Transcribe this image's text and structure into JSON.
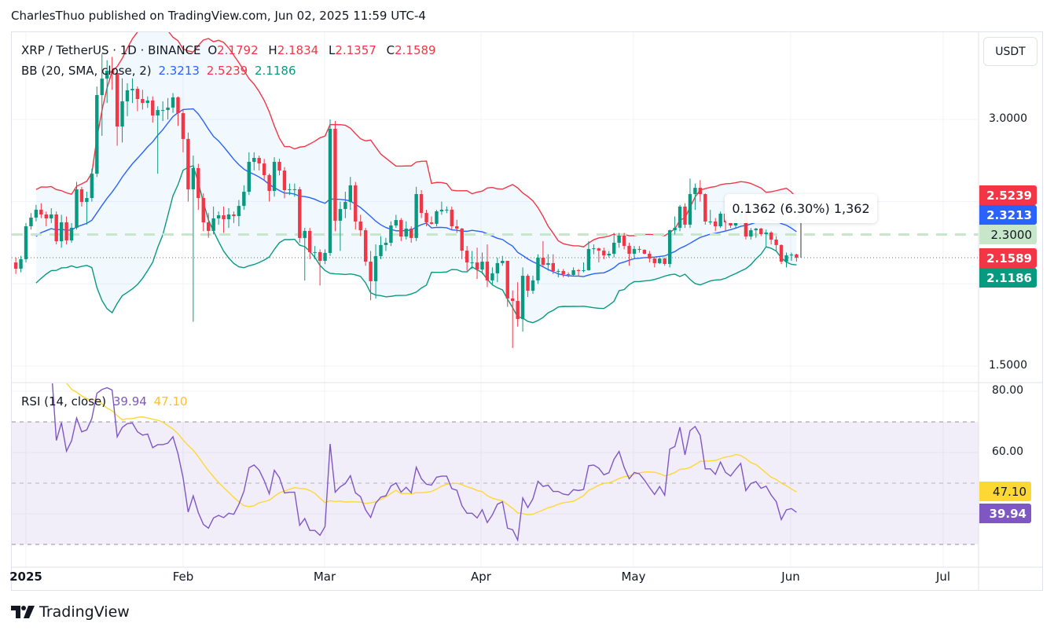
{
  "header": {
    "published": "CharlesThuo published on TradingView.com, Jun 02, 2025 11:59 UTC-4"
  },
  "legend": {
    "symbol": "XRP / TetherUS · 1D · BINANCE",
    "o_label": "O",
    "o": "2.1792",
    "h_label": "H",
    "h": "2.1834",
    "l_label": "L",
    "l": "2.1357",
    "c_label": "C",
    "c": "2.1589",
    "bb_label": "BB (20, SMA, close, 2)",
    "bb_basis": "2.3213",
    "bb_upper": "2.5239",
    "bb_lower": "2.1186",
    "rsi_label": "RSI (14, close)",
    "rsi": "39.94",
    "rsi_ma": "47.10"
  },
  "currency_button": "USDT",
  "price_axis": [
    "3.0000",
    "1.5000"
  ],
  "rsi_axis": [
    "80.00",
    "60.00"
  ],
  "price_labels": {
    "upper": "2.5239",
    "basis": "2.3213",
    "level": "2.3000",
    "close": "2.1589",
    "lower": "2.1186"
  },
  "rsi_labels": {
    "ma": "47.10",
    "rsi": "39.94"
  },
  "measure_tooltip": "0.1362 (6.30%) 1,362",
  "time_axis": [
    "2025",
    "Feb",
    "Mar",
    "Apr",
    "May",
    "Jun",
    "Jul"
  ],
  "footer": {
    "brand": "TradingView"
  },
  "colors": {
    "up": "#089981",
    "down": "#f23645",
    "bb_basis": "#2962ff",
    "bb_upper": "#f23645",
    "bb_lower": "#089981",
    "rsi": "#7e57c2",
    "rsi_ma": "#fdd835",
    "level_line": "#c8e6c9"
  },
  "chart_data": {
    "type": "candlestick",
    "symbol": "XRP / TetherUS",
    "interval": "1D",
    "exchange": "BINANCE",
    "ylim": [
      1.45,
      3.45
    ],
    "rsi_ylim": [
      26,
      82
    ],
    "horizontal_level": 2.3,
    "rsi_bands": [
      30,
      50,
      70
    ],
    "indicators": {
      "bb": {
        "length": 20,
        "type": "SMA",
        "source": "close",
        "mult": 2
      },
      "rsi": {
        "length": 14,
        "source": "close",
        "ma_length": 14
      }
    },
    "columns": [
      "date",
      "open",
      "high",
      "low",
      "close"
    ],
    "candles": [
      [
        "2024-12-30",
        2.13,
        2.16,
        2.06,
        2.092
      ],
      [
        "2024-12-31",
        2.092,
        2.17,
        2.07,
        2.15
      ],
      [
        "2025-01-01",
        2.15,
        2.37,
        2.13,
        2.35
      ],
      [
        "2025-01-02",
        2.35,
        2.43,
        2.33,
        2.403
      ],
      [
        "2025-01-03",
        2.403,
        2.48,
        2.38,
        2.451
      ],
      [
        "2025-01-04",
        2.451,
        2.49,
        2.4,
        2.422
      ],
      [
        "2025-01-05",
        2.422,
        2.44,
        2.35,
        2.398
      ],
      [
        "2025-01-06",
        2.398,
        2.46,
        2.37,
        2.422
      ],
      [
        "2025-01-07",
        2.422,
        2.44,
        2.24,
        2.259
      ],
      [
        "2025-01-08",
        2.259,
        2.42,
        2.22,
        2.374
      ],
      [
        "2025-01-09",
        2.374,
        2.41,
        2.24,
        2.264
      ],
      [
        "2025-01-10",
        2.264,
        2.37,
        2.25,
        2.341
      ],
      [
        "2025-01-11",
        2.341,
        2.62,
        2.33,
        2.575
      ],
      [
        "2025-01-12",
        2.575,
        2.59,
        2.47,
        2.498
      ],
      [
        "2025-01-13",
        2.498,
        2.56,
        2.36,
        2.522
      ],
      [
        "2025-01-14",
        2.522,
        2.7,
        2.5,
        2.67
      ],
      [
        "2025-01-15",
        2.67,
        3.2,
        2.65,
        3.148
      ],
      [
        "2025-01-16",
        3.148,
        3.4,
        2.9,
        3.248
      ],
      [
        "2025-01-17",
        3.248,
        3.36,
        3.1,
        3.296
      ],
      [
        "2025-01-18",
        3.296,
        3.38,
        3.18,
        3.282
      ],
      [
        "2025-01-19",
        3.282,
        3.3,
        2.84,
        2.957
      ],
      [
        "2025-01-20",
        2.957,
        3.25,
        2.86,
        3.11
      ],
      [
        "2025-01-21",
        3.11,
        3.22,
        3.02,
        3.177
      ],
      [
        "2025-01-22",
        3.177,
        3.25,
        3.1,
        3.186
      ],
      [
        "2025-01-23",
        3.186,
        3.2,
        3.05,
        3.124
      ],
      [
        "2025-01-24",
        3.124,
        3.18,
        3.06,
        3.1
      ],
      [
        "2025-01-25",
        3.1,
        3.14,
        3.07,
        3.115
      ],
      [
        "2025-01-26",
        3.115,
        3.14,
        2.98,
        3.024
      ],
      [
        "2025-01-27",
        3.024,
        3.08,
        2.67,
        3.057
      ],
      [
        "2025-01-28",
        3.057,
        3.11,
        2.99,
        3.057
      ],
      [
        "2025-01-29",
        3.057,
        3.13,
        3.0,
        3.072
      ],
      [
        "2025-01-30",
        3.072,
        3.16,
        3.04,
        3.134
      ],
      [
        "2025-01-31",
        3.134,
        3.14,
        2.96,
        3.038
      ],
      [
        "2025-02-01",
        3.038,
        3.06,
        2.8,
        2.881
      ],
      [
        "2025-02-02",
        2.881,
        2.92,
        2.5,
        2.575
      ],
      [
        "2025-02-03",
        2.575,
        2.78,
        1.77,
        2.704
      ],
      [
        "2025-02-04",
        2.704,
        2.73,
        2.45,
        2.522
      ],
      [
        "2025-02-05",
        2.522,
        2.55,
        2.32,
        2.374
      ],
      [
        "2025-02-06",
        2.374,
        2.43,
        2.28,
        2.322
      ],
      [
        "2025-02-07",
        2.322,
        2.47,
        2.3,
        2.398
      ],
      [
        "2025-02-08",
        2.398,
        2.44,
        2.36,
        2.417
      ],
      [
        "2025-02-09",
        2.417,
        2.47,
        2.31,
        2.393
      ],
      [
        "2025-02-10",
        2.393,
        2.46,
        2.34,
        2.422
      ],
      [
        "2025-02-11",
        2.422,
        2.44,
        2.37,
        2.412
      ],
      [
        "2025-02-12",
        2.412,
        2.51,
        2.35,
        2.474
      ],
      [
        "2025-02-13",
        2.474,
        2.6,
        2.45,
        2.56
      ],
      [
        "2025-02-14",
        2.56,
        2.8,
        2.54,
        2.742
      ],
      [
        "2025-02-15",
        2.742,
        2.8,
        2.69,
        2.766
      ],
      [
        "2025-02-16",
        2.766,
        2.78,
        2.69,
        2.732
      ],
      [
        "2025-02-17",
        2.732,
        2.76,
        2.63,
        2.661
      ],
      [
        "2025-02-18",
        2.661,
        2.67,
        2.5,
        2.565
      ],
      [
        "2025-02-19",
        2.565,
        2.77,
        2.53,
        2.742
      ],
      [
        "2025-02-20",
        2.742,
        2.76,
        2.66,
        2.689
      ],
      [
        "2025-02-21",
        2.689,
        2.71,
        2.52,
        2.57
      ],
      [
        "2025-02-22",
        2.57,
        2.61,
        2.54,
        2.575
      ],
      [
        "2025-02-23",
        2.575,
        2.61,
        2.53,
        2.575
      ],
      [
        "2025-02-24",
        2.575,
        2.59,
        2.25,
        2.279
      ],
      [
        "2025-02-25",
        2.279,
        2.34,
        2.02,
        2.322
      ],
      [
        "2025-02-26",
        2.322,
        2.34,
        2.15,
        2.193
      ],
      [
        "2025-02-27",
        2.193,
        2.23,
        2.15,
        2.193
      ],
      [
        "2025-02-28",
        2.193,
        2.21,
        1.99,
        2.14
      ],
      [
        "2025-03-01",
        2.14,
        2.21,
        2.12,
        2.188
      ],
      [
        "2025-03-02",
        2.188,
        3.0,
        2.17,
        2.943
      ],
      [
        "2025-03-03",
        2.943,
        2.99,
        2.32,
        2.384
      ],
      [
        "2025-03-04",
        2.384,
        2.5,
        2.2,
        2.455
      ],
      [
        "2025-03-05",
        2.455,
        2.56,
        2.4,
        2.498
      ],
      [
        "2025-03-06",
        2.498,
        2.65,
        2.45,
        2.599
      ],
      [
        "2025-03-07",
        2.599,
        2.62,
        2.33,
        2.379
      ],
      [
        "2025-03-08",
        2.379,
        2.42,
        2.29,
        2.326
      ],
      [
        "2025-03-09",
        2.326,
        2.34,
        2.11,
        2.135
      ],
      [
        "2025-03-10",
        2.135,
        2.2,
        1.9,
        2.016
      ],
      [
        "2025-03-11",
        2.016,
        2.24,
        1.91,
        2.169
      ],
      [
        "2025-03-12",
        2.169,
        2.29,
        2.15,
        2.236
      ],
      [
        "2025-03-13",
        2.236,
        2.28,
        2.2,
        2.25
      ],
      [
        "2025-03-14",
        2.25,
        2.38,
        2.23,
        2.355
      ],
      [
        "2025-03-15",
        2.355,
        2.42,
        2.34,
        2.388
      ],
      [
        "2025-03-16",
        2.388,
        2.4,
        2.26,
        2.288
      ],
      [
        "2025-03-17",
        2.288,
        2.38,
        2.27,
        2.336
      ],
      [
        "2025-03-18",
        2.336,
        2.35,
        2.25,
        2.279
      ],
      [
        "2025-03-19",
        2.279,
        2.59,
        2.26,
        2.546
      ],
      [
        "2025-03-20",
        2.546,
        2.57,
        2.4,
        2.431
      ],
      [
        "2025-03-21",
        2.431,
        2.45,
        2.35,
        2.374
      ],
      [
        "2025-03-22",
        2.374,
        2.41,
        2.36,
        2.365
      ],
      [
        "2025-03-23",
        2.365,
        2.45,
        2.35,
        2.441
      ],
      [
        "2025-03-24",
        2.441,
        2.5,
        2.42,
        2.451
      ],
      [
        "2025-03-25",
        2.451,
        2.47,
        2.43,
        2.451
      ],
      [
        "2025-03-26",
        2.451,
        2.47,
        2.33,
        2.35
      ],
      [
        "2025-03-27",
        2.35,
        2.39,
        2.31,
        2.336
      ],
      [
        "2025-03-28",
        2.336,
        2.34,
        2.15,
        2.202
      ],
      [
        "2025-03-29",
        2.202,
        2.23,
        2.08,
        2.13
      ],
      [
        "2025-03-30",
        2.13,
        2.2,
        2.09,
        2.13
      ],
      [
        "2025-03-31",
        2.13,
        2.22,
        2.03,
        2.087
      ],
      [
        "2025-04-01",
        2.087,
        2.19,
        2.06,
        2.135
      ],
      [
        "2025-04-02",
        2.135,
        2.24,
        1.98,
        2.021
      ],
      [
        "2025-04-03",
        2.021,
        2.1,
        1.99,
        2.064
      ],
      [
        "2025-04-04",
        2.064,
        2.16,
        2.01,
        2.126
      ],
      [
        "2025-04-05",
        2.126,
        2.17,
        2.11,
        2.14
      ],
      [
        "2025-04-06",
        2.14,
        2.14,
        1.86,
        1.911
      ],
      [
        "2025-04-07",
        1.911,
        1.96,
        1.61,
        1.896
      ],
      [
        "2025-04-08",
        1.896,
        2.01,
        1.74,
        1.786
      ],
      [
        "2025-04-09",
        1.786,
        2.1,
        1.71,
        2.049
      ],
      [
        "2025-04-10",
        2.049,
        2.06,
        1.92,
        1.958
      ],
      [
        "2025-04-11",
        1.958,
        2.05,
        1.94,
        2.021
      ],
      [
        "2025-04-12",
        2.021,
        2.18,
        2.0,
        2.159
      ],
      [
        "2025-04-13",
        2.159,
        2.26,
        2.1,
        2.116
      ],
      [
        "2025-04-14",
        2.116,
        2.18,
        2.08,
        2.126
      ],
      [
        "2025-04-15",
        2.126,
        2.18,
        2.06,
        2.078
      ],
      [
        "2025-04-16",
        2.078,
        2.09,
        2.04,
        2.078
      ],
      [
        "2025-04-17",
        2.078,
        2.09,
        2.04,
        2.059
      ],
      [
        "2025-04-18",
        2.059,
        2.07,
        2.04,
        2.054
      ],
      [
        "2025-04-19",
        2.054,
        2.1,
        2.05,
        2.083
      ],
      [
        "2025-04-20",
        2.083,
        2.09,
        2.05,
        2.078
      ],
      [
        "2025-04-21",
        2.078,
        2.13,
        2.07,
        2.083
      ],
      [
        "2025-04-22",
        2.083,
        2.26,
        2.08,
        2.212
      ],
      [
        "2025-04-23",
        2.212,
        2.24,
        2.18,
        2.216
      ],
      [
        "2025-04-24",
        2.216,
        2.22,
        2.13,
        2.202
      ],
      [
        "2025-04-25",
        2.202,
        2.22,
        2.15,
        2.173
      ],
      [
        "2025-04-26",
        2.173,
        2.2,
        2.16,
        2.183
      ],
      [
        "2025-04-27",
        2.183,
        2.31,
        2.16,
        2.25
      ],
      [
        "2025-04-28",
        2.25,
        2.31,
        2.22,
        2.293
      ],
      [
        "2025-04-29",
        2.293,
        2.31,
        2.21,
        2.231
      ],
      [
        "2025-04-30",
        2.231,
        2.25,
        2.11,
        2.183
      ],
      [
        "2025-05-01",
        2.183,
        2.23,
        2.16,
        2.212
      ],
      [
        "2025-05-02",
        2.212,
        2.23,
        2.19,
        2.207
      ],
      [
        "2025-05-03",
        2.207,
        2.21,
        2.18,
        2.183
      ],
      [
        "2025-05-04",
        2.183,
        2.2,
        2.13,
        2.154
      ],
      [
        "2025-05-05",
        2.154,
        2.16,
        2.1,
        2.126
      ],
      [
        "2025-05-06",
        2.126,
        2.16,
        2.12,
        2.154
      ],
      [
        "2025-05-07",
        2.154,
        2.16,
        2.11,
        2.121
      ],
      [
        "2025-05-08",
        2.121,
        2.33,
        2.1,
        2.326
      ],
      [
        "2025-05-09",
        2.326,
        2.41,
        2.3,
        2.341
      ],
      [
        "2025-05-10",
        2.341,
        2.48,
        2.32,
        2.47
      ],
      [
        "2025-05-11",
        2.47,
        2.49,
        2.34,
        2.36
      ],
      [
        "2025-05-12",
        2.36,
        2.64,
        2.34,
        2.546
      ],
      [
        "2025-05-13",
        2.546,
        2.61,
        2.45,
        2.584
      ],
      [
        "2025-05-14",
        2.584,
        2.63,
        2.5,
        2.546
      ],
      [
        "2025-05-15",
        2.546,
        2.55,
        2.36,
        2.379
      ],
      [
        "2025-05-16",
        2.379,
        2.45,
        2.36,
        2.379
      ],
      [
        "2025-05-17",
        2.379,
        2.4,
        2.32,
        2.35
      ],
      [
        "2025-05-18",
        2.35,
        2.44,
        2.34,
        2.427
      ],
      [
        "2025-05-19",
        2.427,
        2.45,
        2.32,
        2.374
      ],
      [
        "2025-05-20",
        2.374,
        2.39,
        2.34,
        2.355
      ],
      [
        "2025-05-21",
        2.355,
        2.42,
        2.34,
        2.393
      ],
      [
        "2025-05-22",
        2.393,
        2.45,
        2.38,
        2.427
      ],
      [
        "2025-05-23",
        2.427,
        2.46,
        2.27,
        2.288
      ],
      [
        "2025-05-24",
        2.288,
        2.34,
        2.27,
        2.326
      ],
      [
        "2025-05-25",
        2.326,
        2.34,
        2.28,
        2.336
      ],
      [
        "2025-05-26",
        2.336,
        2.34,
        2.29,
        2.302
      ],
      [
        "2025-05-27",
        2.302,
        2.33,
        2.22,
        2.312
      ],
      [
        "2025-05-28",
        2.312,
        2.32,
        2.24,
        2.269
      ],
      [
        "2025-05-29",
        2.269,
        2.29,
        2.2,
        2.236
      ],
      [
        "2025-05-30",
        2.236,
        2.24,
        2.12,
        2.135
      ],
      [
        "2025-05-31",
        2.135,
        2.19,
        2.1,
        2.173
      ],
      [
        "2025-06-01",
        2.173,
        2.19,
        2.14,
        2.178
      ],
      [
        "2025-06-02",
        2.1792,
        2.1834,
        2.1357,
        2.1589
      ]
    ]
  }
}
